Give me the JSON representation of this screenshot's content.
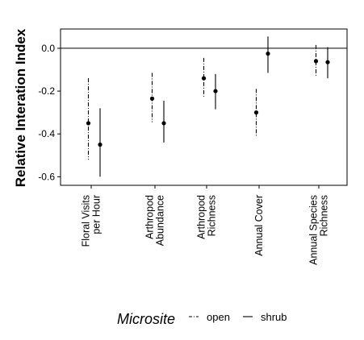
{
  "chart_data": {
    "type": "errorbar",
    "title": "",
    "xlabel": "",
    "ylabel": "Relative Interation Index",
    "ylim": [
      -0.64,
      0.09
    ],
    "yticks": [
      0.0,
      -0.2,
      -0.4,
      -0.6
    ],
    "ytick_labels": [
      "0.0",
      "-0.2",
      "-0.4",
      "-0.6"
    ],
    "reference_line": 0.0,
    "grid": false,
    "categories": [
      {
        "lines": [
          "Floral Visits",
          "per Hour"
        ]
      },
      {
        "lines": [
          "Arthropod",
          "Abundance"
        ]
      },
      {
        "lines": [
          "Arthropod",
          "Richness"
        ]
      },
      {
        "lines": [
          "Annual Cover"
        ]
      },
      {
        "lines": [
          "Annual Species",
          "Richness"
        ]
      }
    ],
    "legend": {
      "title": "Microsite",
      "placement": "bottom",
      "items": [
        {
          "label": "open",
          "linestyle": "dashdot"
        },
        {
          "label": "shrub",
          "linestyle": "solid"
        }
      ]
    },
    "series": [
      {
        "name": "open",
        "linestyle": "dashdot",
        "mean": [
          -0.35,
          -0.235,
          -0.14,
          -0.3,
          -0.06
        ],
        "lower": [
          -0.52,
          -0.345,
          -0.23,
          -0.41,
          -0.135
        ],
        "upper": [
          -0.14,
          -0.115,
          -0.045,
          -0.19,
          0.015
        ]
      },
      {
        "name": "shrub",
        "linestyle": "solid",
        "mean": [
          -0.45,
          -0.35,
          -0.2,
          -0.025,
          -0.065
        ],
        "lower": [
          -0.6,
          -0.44,
          -0.285,
          -0.115,
          -0.14
        ],
        "upper": [
          -0.28,
          -0.245,
          -0.12,
          0.055,
          0.005
        ]
      }
    ]
  }
}
